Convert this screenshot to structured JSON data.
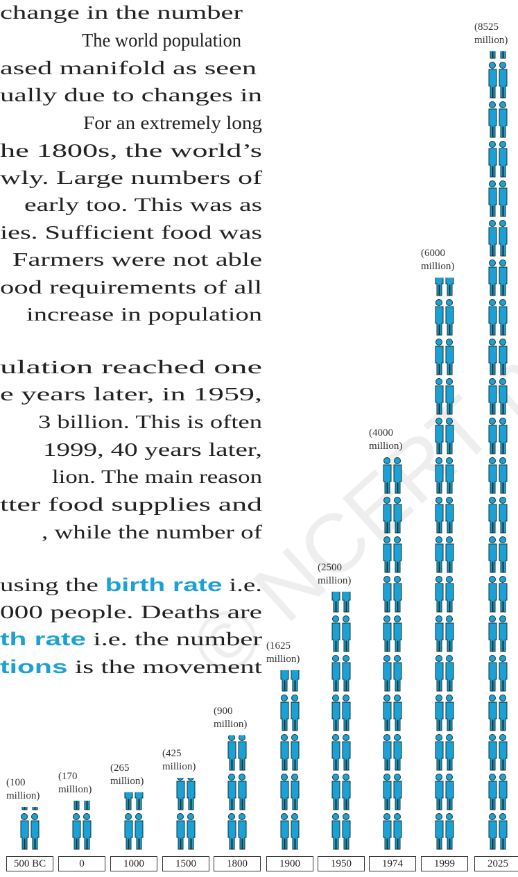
{
  "text_lines": [
    [
      {
        "text": "change in the number"
      }
    ],
    [
      {
        "text": "The world population"
      }
    ],
    [
      {
        "text": "ased manifold as seen"
      }
    ],
    [
      {
        "text": "ually due to changes in"
      }
    ],
    [
      {
        "text": "For an extremely long"
      }
    ],
    [
      {
        "text": "he 1800s, the world’s"
      }
    ],
    [
      {
        "text": "wly. Large numbers of"
      }
    ],
    [
      {
        "text": "early too. This was as"
      }
    ],
    [
      {
        "text": "ies. Sufficient food was"
      }
    ],
    [
      {
        "text": "Farmers were not able"
      }
    ],
    [
      {
        "text": "ood requirements of all"
      }
    ],
    [
      {
        "text": "increase in population"
      }
    ],
    [
      {
        "text": "ulation   reached   one"
      }
    ],
    [
      {
        "text": "e years later, in 1959,"
      }
    ],
    [
      {
        "text": "3 billion. This is often"
      }
    ],
    [
      {
        "text": "1999, 40 years later,"
      }
    ],
    [
      {
        "text": "lion. The main reason"
      }
    ],
    [
      {
        "text": "tter food supplies and"
      }
    ],
    [
      {
        "text": ", while the number of"
      }
    ],
    [
      {
        "text": "using the "
      },
      {
        "text": "birth rate",
        "emphasis": true
      },
      {
        "text": " i.e."
      }
    ],
    [
      {
        "text": "000 people. Deaths are"
      }
    ],
    [
      {
        "text": "th rate",
        "emphasis": true
      },
      {
        "text": " i.e. the number"
      }
    ],
    [
      {
        "text": "tions",
        "emphasis": true
      },
      {
        "text": " is the movement"
      }
    ]
  ],
  "watermark": "© NCERT not to be republished",
  "chart_data": {
    "type": "pictograph",
    "categories": [
      "500 BC",
      "0",
      "1000",
      "1500",
      "1800",
      "1900",
      "1950",
      "1974",
      "1999",
      "2025"
    ],
    "values": [
      100,
      170,
      265,
      425,
      900,
      1625,
      2500,
      4000,
      6000,
      8525
    ],
    "value_labels": [
      "(100 million)",
      "(170 million)",
      "(265 million)",
      "(425 million)",
      "(900 million)",
      "(1625 million)",
      "(2500 million)",
      "(4000 million)",
      "(6000 million)",
      "(8525 million)"
    ],
    "color": "#1ba1d6",
    "emphasis_color": "#1ba1d6"
  }
}
